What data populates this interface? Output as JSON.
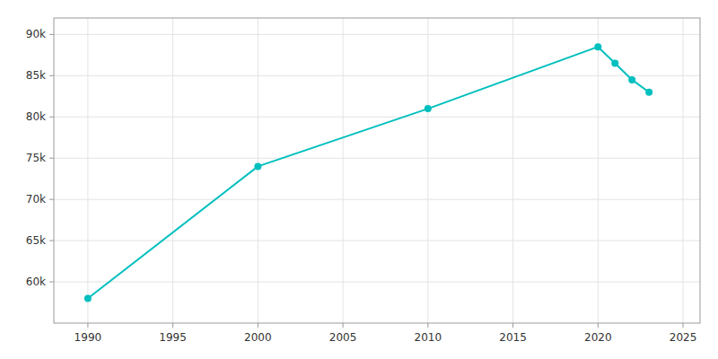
{
  "chart_data": {
    "type": "line",
    "x": [
      1990,
      2000,
      2010,
      2020,
      2021,
      2022,
      2023
    ],
    "values": [
      58000,
      74000,
      81000,
      88500,
      86500,
      84500,
      83000
    ],
    "color": "#00BFBF",
    "marker": "circle",
    "xlim": [
      1988,
      2026
    ],
    "ylim": [
      55000,
      92000
    ],
    "xticks": [
      1990,
      1995,
      2000,
      2005,
      2010,
      2015,
      2020,
      2025
    ],
    "yticks": [
      {
        "value": 60000,
        "label": "60k"
      },
      {
        "value": 65000,
        "label": "65k"
      },
      {
        "value": 70000,
        "label": "70k"
      },
      {
        "value": 75000,
        "label": "75k"
      },
      {
        "value": 80000,
        "label": "80k"
      },
      {
        "value": 85000,
        "label": "85k"
      },
      {
        "value": 90000,
        "label": "90k"
      }
    ],
    "grid": true
  }
}
